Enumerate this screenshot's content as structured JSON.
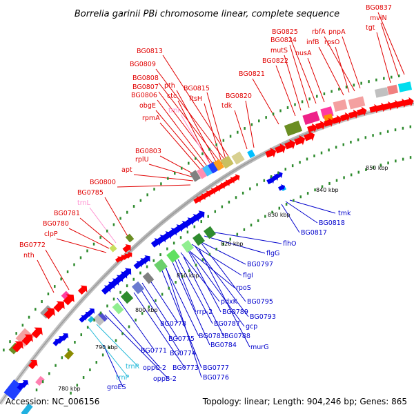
{
  "title": "Borrelia garinii PBi chromosome linear, complete sequence",
  "footer": {
    "accession": "Accession: NC_006156",
    "summary": "Topology: linear; Length: 904,246 bp; Genes: 865"
  },
  "colors": {
    "forward_label": "#e00000",
    "reverse_label": "#0000cc",
    "rna_forward_label": "#ff8fd0",
    "rna_reverse_label": "#20b8d8",
    "forward_arrow": "#ff0000",
    "reverse_arrow": "#0000ee",
    "backbone": "#8a8a8a",
    "tick": "#2e8b2e"
  },
  "kbp_ticks": [
    "780 kbp",
    "790 kbp",
    "800 kbp",
    "810 kbp",
    "820 kbp",
    "830 kbp",
    "840 kbp",
    "850 kbp"
  ],
  "forward_labels": [
    "BG0837",
    "mviN",
    "tgt",
    "BG0825",
    "BG0824",
    "rbfA",
    "pnpA",
    "mutS",
    "infB",
    "rpsO",
    "nusA",
    "BG0822",
    "BG0821",
    "BG0813",
    "BG0809",
    "BG0808",
    "pth",
    "BG0807",
    "ctc",
    "BG0815",
    "BG0806",
    "obgE",
    "ftsH",
    "BG0820",
    "tdk",
    "rpmA",
    "BG0803",
    "rplU",
    "apt",
    "BG0800",
    "BG0785",
    "BG0781",
    "BG0780",
    "clpP",
    "BG0772",
    "nth"
  ],
  "forward_rna_labels": [
    "trnI",
    "trnL"
  ],
  "reverse_labels": [
    "tmk",
    "BG0818",
    "BG0817",
    "flhO",
    "flgG",
    "BG0797",
    "flgI",
    "rpoS",
    "pdxK",
    "BG0795",
    "rrp-2",
    "BG0789",
    "BG0793",
    "BG0787",
    "gcp",
    "BG0778",
    "BG0788",
    "BG0783",
    "BG0784",
    "murG",
    "BG0775",
    "BG0774",
    "BG0771",
    "BG0773",
    "BG0777",
    "oppC-2",
    "BG0776",
    "oppB-2",
    "groES"
  ],
  "reverse_rna_labels": [
    "trnR",
    "trnP"
  ]
}
